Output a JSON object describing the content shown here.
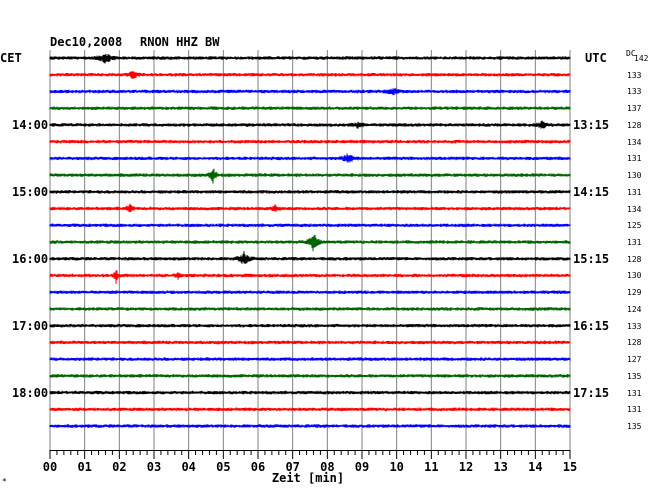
{
  "header": {
    "date": "Dec10,2008",
    "station": "RNON HHZ BW",
    "left_zone": "CET",
    "right_zone": "UTC",
    "dc_label": "DC"
  },
  "left_hours": [
    "14:00",
    "15:00",
    "16:00",
    "17:00",
    "18:00"
  ],
  "right_hours": [
    "13:15",
    "14:15",
    "15:15",
    "16:15",
    "17:15"
  ],
  "dc_values": [
    "142",
    "133",
    "133",
    "137",
    "128",
    "134",
    "131",
    "130",
    "131",
    "134",
    "125",
    "131",
    "128",
    "130",
    "129",
    "124",
    "133",
    "128",
    "127",
    "135",
    "131",
    "131",
    "135"
  ],
  "trace_colors": [
    "#000000",
    "#ff0000",
    "#0000ff",
    "#006400"
  ],
  "x_axis": {
    "title": "Zeit [min]",
    "ticks": [
      "00",
      "01",
      "02",
      "03",
      "04",
      "05",
      "06",
      "07",
      "08",
      "09",
      "10",
      "11",
      "12",
      "13",
      "14",
      "15"
    ],
    "range": [
      0,
      15
    ]
  },
  "footnote": "*"
}
